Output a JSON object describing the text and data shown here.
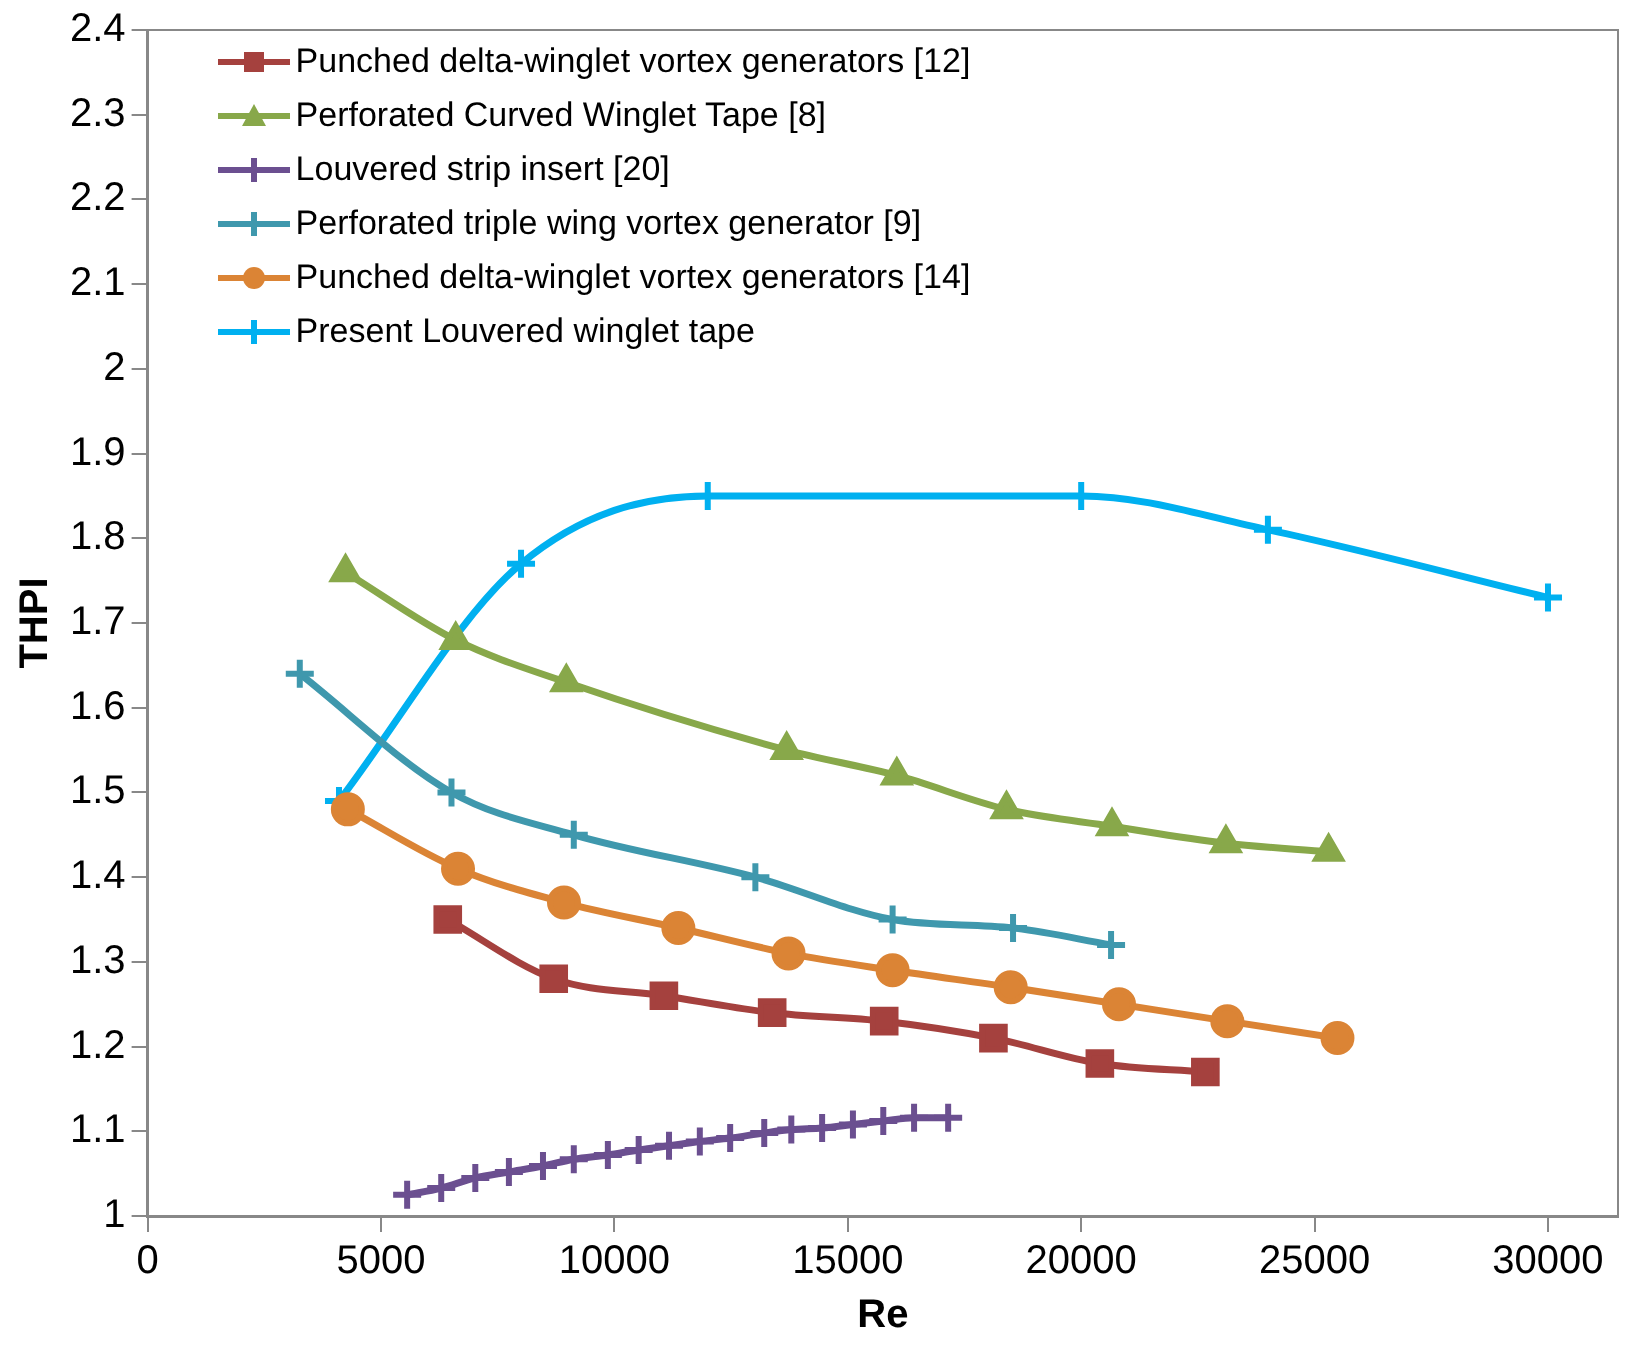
{
  "chart_data": {
    "type": "line",
    "xlabel": "Re",
    "ylabel": "THPI",
    "xlim": [
      0,
      31500
    ],
    "xticks": [
      0,
      5000,
      10000,
      15000,
      20000,
      25000,
      30000
    ],
    "ylim": [
      1,
      2.4
    ],
    "yticks": [
      1,
      1.1,
      1.2,
      1.3,
      1.4,
      1.5,
      1.6,
      1.7,
      1.8,
      1.9,
      2,
      2.1,
      2.2,
      2.3,
      2.4
    ],
    "grid": false,
    "legend": "top left",
    "line_style": "solid",
    "series": [
      {
        "name": "Punched delta-winglet vortex generators [12]",
        "color": "#a5413e",
        "marker": "square",
        "x": [
          6430,
          8700,
          11060,
          13380,
          15780,
          18120,
          20400,
          22660
        ],
        "values": [
          1.35,
          1.28,
          1.26,
          1.24,
          1.23,
          1.21,
          1.18,
          1.17
        ]
      },
      {
        "name": "Perforated Curved Winglet Tape [8]",
        "color": "#88a84a",
        "marker": "triangle",
        "x": [
          4240,
          6600,
          8970,
          13690,
          16050,
          18400,
          20660,
          23100,
          25300
        ],
        "values": [
          1.76,
          1.68,
          1.63,
          1.55,
          1.52,
          1.48,
          1.46,
          1.44,
          1.43
        ]
      },
      {
        "name": "Louvered strip insert [20]",
        "color": "#6b4f90",
        "marker": "cross",
        "x": [
          5560,
          6290,
          7020,
          7740,
          8470,
          9130,
          9860,
          10520,
          11170,
          11830,
          12480,
          13210,
          13790,
          14450,
          15110,
          15760,
          16420,
          17150
        ],
        "values": [
          1.025,
          1.033,
          1.045,
          1.052,
          1.059,
          1.067,
          1.072,
          1.078,
          1.083,
          1.088,
          1.092,
          1.098,
          1.102,
          1.104,
          1.108,
          1.112,
          1.116,
          1.116
        ]
      },
      {
        "name": "Perforated triple wing vortex generator [9]",
        "color": "#3f98ad",
        "marker": "cross",
        "x": [
          3260,
          6510,
          9130,
          13020,
          15960,
          18540,
          20640
        ],
        "values": [
          1.64,
          1.5,
          1.45,
          1.4,
          1.35,
          1.34,
          1.32
        ]
      },
      {
        "name": "Punched delta-winglet vortex generators [14]",
        "color": "#db8435",
        "marker": "circle",
        "x": [
          4290,
          6650,
          8920,
          11370,
          13730,
          15960,
          18490,
          20810,
          23130,
          25490
        ],
        "values": [
          1.48,
          1.41,
          1.37,
          1.34,
          1.31,
          1.29,
          1.27,
          1.25,
          1.23,
          1.21
        ]
      },
      {
        "name": "Present Louvered winglet tape",
        "color": "#00b0f0",
        "marker": "cross",
        "x": [
          4100,
          8000,
          12000,
          20000,
          24000,
          30000
        ],
        "values": [
          1.49,
          1.77,
          1.85,
          1.85,
          1.81,
          1.73
        ]
      }
    ]
  }
}
